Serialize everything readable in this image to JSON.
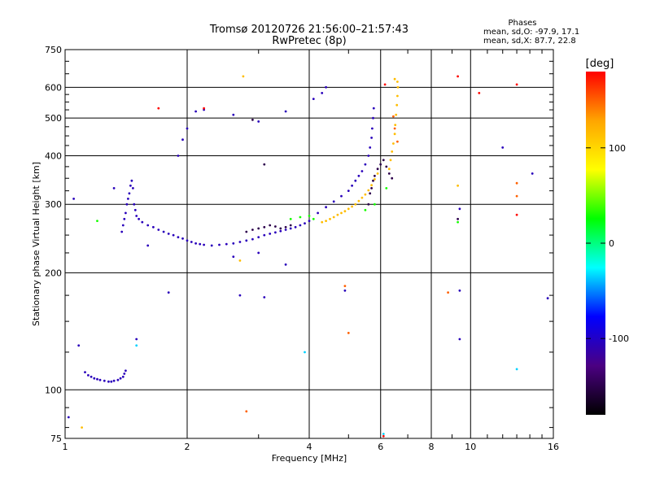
{
  "chart_data": {
    "type": "scatter",
    "title": "Tromsø 20120726 21:56:00–21:57:43",
    "subtitle": "RwPretec (8p)",
    "xlabel": "Frequency [MHz]",
    "ylabel": "Stationary phase Virtual Height [km]",
    "x_scale": "log",
    "y_scale": "log",
    "xlim": [
      1,
      16
    ],
    "ylim": [
      75,
      750
    ],
    "x_ticks": [
      1,
      2,
      4,
      6,
      8,
      10,
      16
    ],
    "x_tick_labels": [
      "1",
      "2",
      "4",
      "6",
      "8",
      "10",
      "16"
    ],
    "x_grid": [
      2,
      4,
      6,
      8,
      10
    ],
    "x_minor_ticks": [
      3,
      5,
      7,
      9,
      11,
      12,
      13,
      14,
      15
    ],
    "y_ticks": [
      75,
      100,
      200,
      300,
      400,
      500,
      600,
      750
    ],
    "y_tick_labels": [
      "75",
      "100",
      "200",
      "300",
      "400",
      "500",
      "600",
      "750"
    ],
    "y_grid": [
      100,
      200,
      300,
      400,
      500,
      600
    ],
    "grid": true,
    "legend": {
      "title": "Phases",
      "line1": "mean, sd,O: -97.9, 17.1",
      "line2": "mean, sd,X:  87.7, 22.8",
      "position": "top-right"
    },
    "colorbar": {
      "label": "[deg]",
      "range": [
        -180,
        180
      ],
      "ticks": [
        100,
        0,
        -100
      ],
      "tick_labels": [
        "100",
        "0",
        "-100"
      ],
      "colormap": [
        "#000000",
        "#4b0082",
        "#0000ff",
        "#00ffff",
        "#00ff00",
        "#ffff00",
        "#ffa500",
        "#ff0000"
      ]
    },
    "series": [
      {
        "points": [
          [
            1.12,
            111
          ],
          [
            1.14,
            109
          ],
          [
            1.16,
            108
          ],
          [
            1.18,
            107
          ],
          [
            1.2,
            106.5
          ],
          [
            1.22,
            106
          ],
          [
            1.25,
            105.5
          ],
          [
            1.28,
            105
          ],
          [
            1.3,
            105
          ],
          [
            1.32,
            105.5
          ],
          [
            1.35,
            106
          ],
          [
            1.37,
            107
          ],
          [
            1.39,
            108
          ],
          [
            1.4,
            110
          ],
          [
            1.41,
            112
          ],
          [
            1.38,
            255
          ],
          [
            1.39,
            265
          ],
          [
            1.4,
            275
          ],
          [
            1.41,
            285
          ],
          [
            1.42,
            300
          ],
          [
            1.43,
            310
          ],
          [
            1.44,
            320
          ],
          [
            1.45,
            335
          ],
          [
            1.46,
            345
          ],
          [
            1.47,
            330
          ],
          [
            1.48,
            300
          ],
          [
            1.49,
            290
          ],
          [
            1.5,
            280
          ],
          [
            1.52,
            275
          ],
          [
            1.55,
            270
          ],
          [
            1.6,
            265
          ],
          [
            1.65,
            262
          ],
          [
            1.7,
            258
          ],
          [
            1.75,
            255
          ],
          [
            1.8,
            252
          ],
          [
            1.85,
            250
          ],
          [
            1.9,
            247
          ],
          [
            1.95,
            245
          ],
          [
            2.0,
            242
          ],
          [
            2.05,
            240
          ],
          [
            2.1,
            238
          ],
          [
            2.15,
            237
          ],
          [
            2.2,
            236
          ],
          [
            2.3,
            235
          ],
          [
            2.4,
            236
          ],
          [
            2.5,
            237
          ],
          [
            2.6,
            238
          ],
          [
            2.7,
            240
          ],
          [
            2.8,
            242
          ],
          [
            2.9,
            244
          ],
          [
            3.0,
            247
          ],
          [
            3.1,
            250
          ],
          [
            3.2,
            252
          ],
          [
            3.3,
            254
          ],
          [
            3.4,
            256
          ],
          [
            3.5,
            258
          ],
          [
            3.6,
            260
          ],
          [
            3.7,
            262
          ],
          [
            3.8,
            265
          ],
          [
            3.9,
            268
          ],
          [
            4.0,
            272
          ],
          [
            4.2,
            285
          ],
          [
            4.4,
            295
          ],
          [
            4.6,
            305
          ],
          [
            4.8,
            315
          ],
          [
            5.0,
            325
          ],
          [
            5.1,
            335
          ],
          [
            5.2,
            345
          ],
          [
            5.3,
            355
          ],
          [
            5.4,
            365
          ],
          [
            5.5,
            380
          ],
          [
            5.6,
            400
          ],
          [
            5.65,
            420
          ],
          [
            5.7,
            445
          ],
          [
            5.72,
            470
          ],
          [
            5.75,
            500
          ],
          [
            5.77,
            530
          ],
          [
            1.9,
            400
          ],
          [
            1.95,
            440
          ],
          [
            2.0,
            470
          ],
          [
            2.1,
            520
          ],
          [
            2.2,
            525
          ],
          [
            2.6,
            510
          ],
          [
            3.0,
            490
          ],
          [
            3.5,
            520
          ],
          [
            4.1,
            560
          ],
          [
            4.3,
            580
          ],
          [
            4.4,
            600
          ],
          [
            1.05,
            310
          ],
          [
            1.32,
            330
          ],
          [
            1.6,
            235
          ],
          [
            2.6,
            220
          ],
          [
            3.0,
            225
          ],
          [
            3.5,
            210
          ],
          [
            1.8,
            178
          ],
          [
            3.1,
            173
          ],
          [
            1.5,
            135
          ],
          [
            1.08,
            130
          ],
          [
            1.02,
            85
          ],
          [
            9.4,
            180
          ],
          [
            9.4,
            135
          ],
          [
            12,
            420
          ],
          [
            9.4,
            292
          ],
          [
            15.5,
            172
          ],
          [
            14.2,
            360
          ],
          [
            2.7,
            175
          ],
          [
            4.9,
            180
          ]
        ],
        "color_value": -105
      },
      {
        "points": [
          [
            2.8,
            255
          ],
          [
            2.9,
            258
          ],
          [
            3.0,
            260
          ],
          [
            3.1,
            262
          ],
          [
            3.2,
            265
          ],
          [
            3.3,
            263
          ],
          [
            3.4,
            260
          ],
          [
            3.5,
            262
          ],
          [
            3.6,
            265
          ],
          [
            5.6,
            300
          ],
          [
            5.65,
            320
          ],
          [
            5.7,
            330
          ],
          [
            5.75,
            345
          ],
          [
            5.8,
            355
          ],
          [
            5.9,
            370
          ],
          [
            6.0,
            380
          ],
          [
            6.1,
            390
          ],
          [
            6.2,
            375
          ],
          [
            6.3,
            360
          ],
          [
            6.4,
            350
          ],
          [
            3.1,
            380
          ],
          [
            2.9,
            495
          ],
          [
            9.3,
            275
          ]
        ],
        "color_value": -150
      },
      {
        "points": [
          [
            1.2,
            272
          ],
          [
            3.6,
            275
          ],
          [
            3.8,
            278
          ],
          [
            4.0,
            280
          ],
          [
            4.1,
            275
          ],
          [
            5.5,
            290
          ],
          [
            5.8,
            300
          ],
          [
            6.2,
            330
          ],
          [
            9.3,
            270
          ]
        ],
        "color_value": 30
      },
      {
        "points": [
          [
            4.3,
            270
          ],
          [
            4.4,
            272
          ],
          [
            4.5,
            275
          ],
          [
            4.6,
            278
          ],
          [
            4.7,
            282
          ],
          [
            4.8,
            285
          ],
          [
            4.9,
            288
          ],
          [
            5.0,
            292
          ],
          [
            5.1,
            296
          ],
          [
            5.2,
            300
          ],
          [
            5.3,
            306
          ],
          [
            5.4,
            312
          ],
          [
            5.5,
            318
          ],
          [
            5.6,
            326
          ],
          [
            5.7,
            336
          ],
          [
            5.8,
            348
          ],
          [
            5.9,
            360
          ],
          [
            6.3,
            370
          ],
          [
            6.35,
            390
          ],
          [
            6.4,
            410
          ],
          [
            6.45,
            430
          ],
          [
            6.5,
            455
          ],
          [
            6.52,
            480
          ],
          [
            6.55,
            510
          ],
          [
            6.58,
            540
          ],
          [
            6.6,
            570
          ],
          [
            6.62,
            600
          ],
          [
            6.6,
            620
          ],
          [
            6.5,
            630
          ],
          [
            2.75,
            640
          ],
          [
            9.3,
            335
          ],
          [
            1.1,
            80
          ],
          [
            2.7,
            215
          ]
        ],
        "color_value": 115
      },
      {
        "points": [
          [
            6.6,
            435
          ],
          [
            6.5,
            470
          ],
          [
            6.45,
            505
          ],
          [
            2.8,
            88
          ],
          [
            5.0,
            140
          ],
          [
            4.9,
            185
          ],
          [
            8.8,
            178
          ],
          [
            13.0,
            340
          ],
          [
            13.0,
            315
          ]
        ],
        "color_value": 150
      },
      {
        "points": [
          [
            1.7,
            530
          ],
          [
            6.15,
            610
          ],
          [
            10.5,
            580
          ],
          [
            13.0,
            610
          ],
          [
            13.0,
            282
          ],
          [
            6.1,
            76
          ],
          [
            9.3,
            640
          ],
          [
            2.2,
            530
          ]
        ],
        "color_value": 178
      },
      {
        "points": [
          [
            3.9,
            125
          ],
          [
            1.5,
            130
          ],
          [
            13.0,
            113
          ],
          [
            6.1,
            77
          ]
        ],
        "color_value": -35
      }
    ]
  }
}
